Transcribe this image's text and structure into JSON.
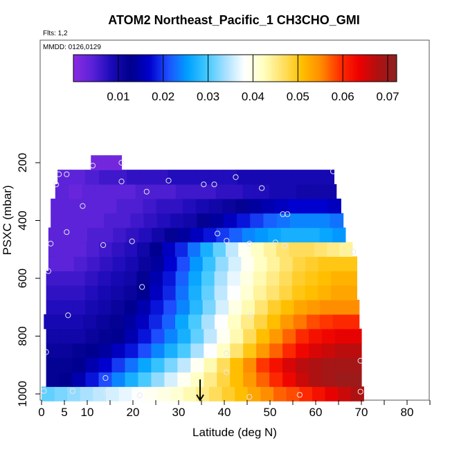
{
  "chart_data": {
    "type": "heatmap",
    "title": "ATOM2 Northeast_Pacific_1 CH3CHO_GMI",
    "annotations": [
      "Flts: 1,2",
      "MMDD: 0126,0129"
    ],
    "xlabel": "Latitude (deg N)",
    "ylabel": "PSXC (mbar)",
    "xlim": [
      0,
      85
    ],
    "ylim": [
      1010,
      0
    ],
    "x_ticks": [
      0,
      5,
      10,
      20,
      30,
      40,
      50,
      60,
      70,
      80
    ],
    "x_tick_labels": [
      "0",
      "5",
      "10",
      "20",
      "30",
      "40",
      "50",
      "60",
      "70",
      "80"
    ],
    "y_ticks": [
      200,
      400,
      600,
      800,
      1000
    ],
    "y_tick_labels": [
      "200",
      "400",
      "600",
      "800",
      "1000"
    ],
    "colorbar": {
      "range": [
        0.0,
        0.072
      ],
      "ticks": [
        0.01,
        0.02,
        0.03,
        0.04,
        0.05,
        0.06,
        0.07
      ],
      "tick_labels": [
        "0.01",
        "0.02",
        "0.03",
        "0.04",
        "0.05",
        "0.06",
        "0.07"
      ],
      "colors": [
        "#8a2be2",
        "#5a22d8",
        "#1a0ab8",
        "#00008b",
        "#0000cd",
        "#1e50ff",
        "#00a0ff",
        "#40c8ff",
        "#a8e0ff",
        "#ffffff",
        "#ffffc0",
        "#ffe066",
        "#ffc000",
        "#ff8c00",
        "#ff3000",
        "#ee0000",
        "#b01010",
        "#8b2323"
      ]
    },
    "rows": [
      {
        "p": 1000,
        "start": 0,
        "end": 70.5,
        "values": [
          0.031,
          0.032,
          0.033,
          0.034,
          0.035,
          0.036,
          0.037,
          0.038,
          0.039,
          0.04,
          0.041,
          0.043,
          0.045,
          0.047,
          0.049,
          0.051,
          0.053,
          0.055,
          0.057,
          0.058,
          0.06,
          0.062,
          0.064,
          0.066,
          0.068
        ]
      },
      {
        "p": 950,
        "start": 1.0,
        "end": 70.0,
        "values": [
          0.012,
          0.013,
          0.015,
          0.018,
          0.021,
          0.024,
          0.027,
          0.03,
          0.033,
          0.036,
          0.039,
          0.042,
          0.045,
          0.048,
          0.051,
          0.054,
          0.057,
          0.06,
          0.063,
          0.066,
          0.068,
          0.069,
          0.07,
          0.07
        ]
      },
      {
        "p": 900,
        "start": 1.0,
        "end": 70.0,
        "values": [
          0.012,
          0.012,
          0.013,
          0.015,
          0.017,
          0.02,
          0.023,
          0.026,
          0.029,
          0.032,
          0.035,
          0.039,
          0.043,
          0.047,
          0.051,
          0.055,
          0.059,
          0.062,
          0.065,
          0.067,
          0.068,
          0.069,
          0.069,
          0.069
        ]
      },
      {
        "p": 850,
        "start": 1.0,
        "end": 70.0,
        "values": [
          0.011,
          0.011,
          0.012,
          0.013,
          0.014,
          0.016,
          0.018,
          0.021,
          0.024,
          0.027,
          0.03,
          0.034,
          0.038,
          0.042,
          0.046,
          0.05,
          0.054,
          0.057,
          0.06,
          0.063,
          0.065,
          0.066,
          0.067,
          0.067
        ]
      },
      {
        "p": 800,
        "start": 1.0,
        "end": 70.0,
        "values": [
          0.01,
          0.01,
          0.01,
          0.011,
          0.012,
          0.013,
          0.015,
          0.018,
          0.021,
          0.024,
          0.027,
          0.031,
          0.035,
          0.039,
          0.043,
          0.047,
          0.051,
          0.054,
          0.057,
          0.06,
          0.062,
          0.063,
          0.064,
          0.064
        ]
      },
      {
        "p": 750,
        "start": 0.5,
        "end": 69.5,
        "values": [
          0.009,
          0.009,
          0.009,
          0.01,
          0.011,
          0.012,
          0.014,
          0.016,
          0.019,
          0.022,
          0.026,
          0.03,
          0.034,
          0.038,
          0.042,
          0.045,
          0.048,
          0.051,
          0.054,
          0.056,
          0.058,
          0.059,
          0.06,
          0.06
        ]
      },
      {
        "p": 700,
        "start": 1.0,
        "end": 69.5,
        "values": [
          0.008,
          0.008,
          0.008,
          0.009,
          0.01,
          0.011,
          0.013,
          0.015,
          0.018,
          0.021,
          0.024,
          0.028,
          0.032,
          0.036,
          0.04,
          0.043,
          0.046,
          0.049,
          0.051,
          0.053,
          0.054,
          0.055,
          0.055,
          0.055
        ]
      },
      {
        "p": 650,
        "start": 1.0,
        "end": 69.0,
        "values": [
          0.007,
          0.007,
          0.007,
          0.008,
          0.009,
          0.01,
          0.011,
          0.013,
          0.016,
          0.019,
          0.023,
          0.027,
          0.031,
          0.035,
          0.038,
          0.041,
          0.044,
          0.046,
          0.048,
          0.05,
          0.051,
          0.052,
          0.053,
          0.053
        ]
      },
      {
        "p": 600,
        "start": 1.0,
        "end": 69.0,
        "values": [
          0.006,
          0.006,
          0.006,
          0.007,
          0.008,
          0.009,
          0.01,
          0.012,
          0.015,
          0.018,
          0.022,
          0.026,
          0.03,
          0.034,
          0.037,
          0.04,
          0.043,
          0.045,
          0.047,
          0.049,
          0.05,
          0.051,
          0.052,
          0.052
        ]
      },
      {
        "p": 550,
        "start": 1.5,
        "end": 69.0,
        "values": [
          0.004,
          0.004,
          0.005,
          0.006,
          0.007,
          0.008,
          0.009,
          0.011,
          0.014,
          0.017,
          0.021,
          0.025,
          0.029,
          0.033,
          0.036,
          0.039,
          0.042,
          0.044,
          0.046,
          0.048,
          0.049,
          0.05,
          0.05,
          0.05
        ]
      },
      {
        "p": 500,
        "start": 1.5,
        "end": 68.0,
        "values": [
          0.004,
          0.004,
          0.004,
          0.005,
          0.006,
          0.007,
          0.008,
          0.01,
          0.013,
          0.016,
          0.019,
          0.023,
          0.027,
          0.031,
          0.035,
          0.039,
          0.042,
          0.044,
          0.046,
          0.047,
          0.047,
          0.046,
          0.045,
          0.044
        ]
      },
      {
        "p": 450,
        "start": 1.5,
        "end": 66.5,
        "values": [
          0.004,
          0.004,
          0.004,
          0.005,
          0.005,
          0.006,
          0.007,
          0.008,
          0.01,
          0.012,
          0.014,
          0.016,
          0.018,
          0.02,
          0.022,
          0.024,
          0.025,
          0.026,
          0.027,
          0.027,
          0.027,
          0.026,
          0.025
        ]
      },
      {
        "p": 400,
        "start": 2.0,
        "end": 66.0,
        "values": [
          0.004,
          0.004,
          0.004,
          0.004,
          0.005,
          0.005,
          0.006,
          0.007,
          0.008,
          0.009,
          0.01,
          0.012,
          0.014,
          0.016,
          0.018,
          0.02,
          0.022,
          0.023,
          0.024,
          0.024,
          0.024,
          0.023
        ]
      },
      {
        "p": 350,
        "start": 2.0,
        "end": 65.5,
        "values": [
          0.004,
          0.004,
          0.004,
          0.004,
          0.004,
          0.005,
          0.005,
          0.006,
          0.007,
          0.007,
          0.008,
          0.009,
          0.01,
          0.011,
          0.012,
          0.014,
          0.015,
          0.016,
          0.017,
          0.017,
          0.017,
          0.016
        ]
      },
      {
        "p": 300,
        "start": 3.0,
        "end": 64.5,
        "values": [
          0.004,
          0.003,
          0.004,
          0.004,
          0.004,
          0.004,
          0.005,
          0.005,
          0.005,
          0.006,
          0.006,
          0.006,
          0.007,
          0.007,
          0.008,
          0.008,
          0.009,
          0.009,
          0.01,
          0.01,
          0.01
        ]
      },
      {
        "p": 250,
        "start": 3.5,
        "end": 64.0,
        "values": [
          0.004,
          0.004,
          0.005,
          0.006,
          0.006,
          0.007,
          0.007,
          0.007,
          0.008,
          0.008,
          0.008,
          0.008,
          0.008,
          0.009,
          0.009,
          0.009,
          0.009,
          0.009,
          0.009,
          0.009
        ]
      },
      {
        "p": 200,
        "start": 10.8,
        "end": 17.5,
        "values": [
          0.002,
          0.002
        ]
      }
    ],
    "points": [
      [
        0.5,
        990
      ],
      [
        6.8,
        990
      ],
      [
        14.2,
        995
      ],
      [
        21.5,
        1005
      ],
      [
        45.5,
        1010
      ],
      [
        56.5,
        1003
      ],
      [
        69.8,
        992
      ],
      [
        14.0,
        945
      ],
      [
        40.5,
        925
      ],
      [
        1.0,
        855
      ],
      [
        40.5,
        860
      ],
      [
        69.8,
        885
      ],
      [
        5.8,
        728
      ],
      [
        45.8,
        728
      ],
      [
        22.0,
        630
      ],
      [
        1.5,
        575
      ],
      [
        2.0,
        480
      ],
      [
        13.5,
        485
      ],
      [
        19.8,
        472
      ],
      [
        40.5,
        470
      ],
      [
        45.5,
        480
      ],
      [
        51.2,
        476
      ],
      [
        53.2,
        487
      ],
      [
        68.2,
        508
      ],
      [
        5.5,
        440
      ],
      [
        38.5,
        445
      ],
      [
        52.8,
        378
      ],
      [
        53.8,
        378
      ],
      [
        9.0,
        350
      ],
      [
        3.2,
        275
      ],
      [
        27.8,
        262
      ],
      [
        23.0,
        300
      ],
      [
        35.5,
        275
      ],
      [
        37.8,
        275
      ],
      [
        42.5,
        250
      ],
      [
        48.2,
        288
      ],
      [
        3.8,
        240
      ],
      [
        5.5,
        240
      ],
      [
        17.5,
        265
      ],
      [
        63.8,
        230
      ],
      [
        11.2,
        210
      ],
      [
        17.5,
        200
      ]
    ],
    "arrow": {
      "x": 34.7,
      "from_p": 950,
      "to_p": 1010
    }
  }
}
